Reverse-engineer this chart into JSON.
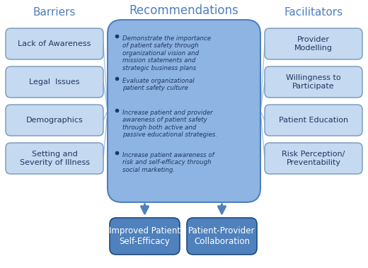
{
  "fig_width": 5.2,
  "fig_height": 3.79,
  "bg_color": "#ffffff",
  "barriers_title": "Barriers",
  "recommendations_title": "Recommendations",
  "facilitators_title": "Facilitators",
  "barriers": [
    "Lack of Awareness",
    "Legal  Issues",
    "Demographics",
    "Setting and\nSeverity of Illness"
  ],
  "facilitators": [
    "Provider\nModelling",
    "Willingness to\nParticipate",
    "Patient Education",
    "Risk Perception/\nPreventability"
  ],
  "bullet_texts": [
    "Demonstrate the importance\nof patient safety through\norganizational vision and\nmission statements and\nstrategic business plans",
    "Evaluate organizational\npatient safety culture",
    "Increase patient and provider\nawareness of patient safety\nthrough both active and\npassive educational strategies.",
    "Increase patient awareness of\nrisk and self-efficacy through\nsocial marketing."
  ],
  "outcomes": [
    "Improved Patient\nSelf-Efficacy",
    "Patient-Provider\nCollaboration"
  ],
  "light_box_facecolor": "#c5d9f1",
  "light_box_edgecolor": "#7f9dbf",
  "rec_box_facecolor": "#8db4e2",
  "rec_box_edgecolor": "#4f81bd",
  "dark_box_facecolor": "#4f81bd",
  "dark_box_edgecolor": "#1f497d",
  "line_color": "#9dc3e6",
  "arrow_color": "#4f81bd",
  "text_dark": "#1f3864",
  "text_white": "#ffffff",
  "header_color": "#4f7fbf"
}
